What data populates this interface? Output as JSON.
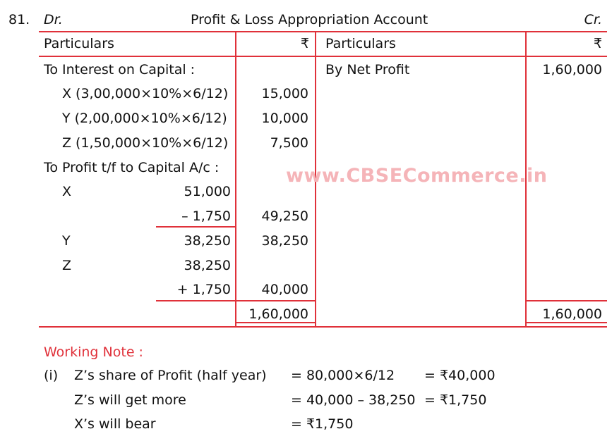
{
  "question_no": "81.",
  "header": {
    "dr": "Dr.",
    "title": "Profit & Loss Appropriation Account",
    "cr": "Cr."
  },
  "columns": {
    "particulars_left": "Particulars",
    "rupee_left": "₹",
    "particulars_right": "Particulars",
    "rupee_right": "₹"
  },
  "debit": {
    "interest_heading": "To Interest on Capital :",
    "interest_rows": [
      {
        "label": "X (3,00,000×10%×6/12)",
        "amount": "15,000"
      },
      {
        "label": "Y (2,00,000×10%×6/12)",
        "amount": "10,000"
      },
      {
        "label": "Z (1,50,000×10%×6/12)",
        "amount": "7,500"
      }
    ],
    "profit_heading": "To Profit t/f to Capital A/c :",
    "profit_rows": [
      {
        "label": "X",
        "sub": "51,000",
        "amount": ""
      },
      {
        "label": "",
        "sub": "– 1,750",
        "amount": "49,250"
      },
      {
        "label": "Y",
        "sub": "38,250",
        "amount": "38,250"
      },
      {
        "label": "Z",
        "sub": "38,250",
        "amount": ""
      },
      {
        "label": "",
        "sub": "+ 1,750",
        "amount": "40,000"
      }
    ],
    "total": "1,60,000"
  },
  "credit": {
    "net_profit_label": "By Net Profit",
    "net_profit_amount": "1,60,000",
    "total": "1,60,000"
  },
  "watermark": "www.CBSECommerce.in",
  "working_note": {
    "heading": "Working Note :",
    "number": "(i)",
    "rows": [
      {
        "label": "Z’s share of Profit (half year)",
        "calc": "= 80,000×6/12",
        "result": "= ₹40,000"
      },
      {
        "label": "Z’s will get more",
        "calc": "= 40,000 – 38,250",
        "result": "= ₹1,750"
      },
      {
        "label": "X’s will bear",
        "calc": "= ₹1,750",
        "result": ""
      }
    ]
  },
  "colors": {
    "accent_red": "#e0313a",
    "watermark": "#f5b4b8"
  }
}
